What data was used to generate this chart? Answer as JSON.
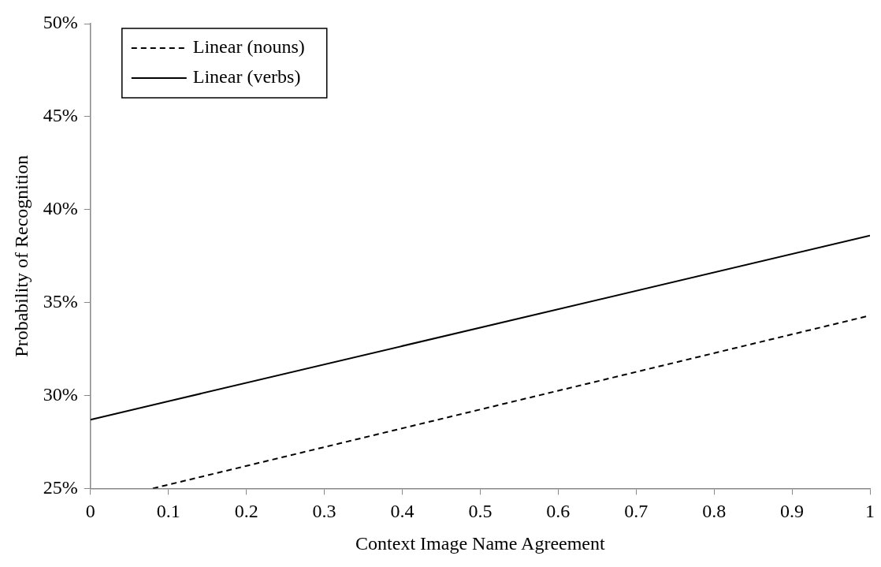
{
  "chart_data": {
    "type": "line",
    "xlabel": "Context Image Name Agreement",
    "ylabel": "Probability of Recognition",
    "xlim": [
      0,
      1
    ],
    "xticks": [
      0,
      0.1,
      0.2,
      0.3,
      0.4,
      0.5,
      0.6,
      0.7,
      0.8,
      0.9,
      1
    ],
    "ylim": [
      25,
      50
    ],
    "yticks": [
      {
        "value": 25,
        "label": "25%"
      },
      {
        "value": 30,
        "label": "30%"
      },
      {
        "value": 35,
        "label": "35%"
      },
      {
        "value": 40,
        "label": "40%"
      },
      {
        "value": 45,
        "label": "45%"
      },
      {
        "value": 50,
        "label": "50%"
      }
    ],
    "grid": false,
    "legend": "top left",
    "marker": "none",
    "series": [
      {
        "name": "Linear (nouns)",
        "color": "#000000",
        "line_style": "dashed",
        "x": [
          0.08,
          1
        ],
        "values": [
          25,
          34.3
        ]
      },
      {
        "name": "Linear (verbs)",
        "color": "#000000",
        "line_style": "solid",
        "x": [
          0,
          1
        ],
        "values": [
          28.7,
          38.6
        ]
      }
    ]
  }
}
